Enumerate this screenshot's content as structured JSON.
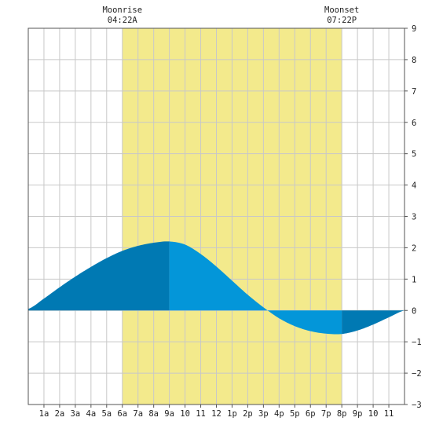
{
  "chart_data": {
    "type": "area",
    "title": "",
    "xlabel": "",
    "ylabel": "",
    "xlim": [
      0,
      24
    ],
    "ylim": [
      -3,
      9
    ],
    "x_ticks": [
      {
        "x": 1,
        "label": "1a"
      },
      {
        "x": 2,
        "label": "2a"
      },
      {
        "x": 3,
        "label": "3a"
      },
      {
        "x": 4,
        "label": "4a"
      },
      {
        "x": 5,
        "label": "5a"
      },
      {
        "x": 6,
        "label": "6a"
      },
      {
        "x": 7,
        "label": "7a"
      },
      {
        "x": 8,
        "label": "8a"
      },
      {
        "x": 9,
        "label": "9a"
      },
      {
        "x": 10,
        "label": "10"
      },
      {
        "x": 11,
        "label": "11"
      },
      {
        "x": 12,
        "label": "12"
      },
      {
        "x": 13,
        "label": "1p"
      },
      {
        "x": 14,
        "label": "2p"
      },
      {
        "x": 15,
        "label": "3p"
      },
      {
        "x": 16,
        "label": "4p"
      },
      {
        "x": 17,
        "label": "5p"
      },
      {
        "x": 18,
        "label": "6p"
      },
      {
        "x": 19,
        "label": "7p"
      },
      {
        "x": 20,
        "label": "8p"
      },
      {
        "x": 21,
        "label": "9p"
      },
      {
        "x": 22,
        "label": "10"
      },
      {
        "x": 23,
        "label": "11"
      }
    ],
    "y_ticks": [
      9,
      8,
      7,
      6,
      5,
      4,
      3,
      2,
      1,
      0,
      -1,
      -2,
      -3
    ],
    "grid": true,
    "annotations": {
      "moonrise": {
        "label": "Moonrise",
        "time": "04:22A",
        "x": 6
      },
      "moonset": {
        "label": "Moonset",
        "time": "07:22P",
        "x": 20
      }
    },
    "tide": {
      "x": [
        0,
        1,
        2,
        3,
        4,
        5,
        6,
        7,
        8,
        9,
        10,
        11,
        12,
        13,
        14,
        15,
        16,
        17,
        18,
        19,
        20,
        21,
        22,
        23,
        24
      ],
      "y": [
        0.05,
        0.38,
        0.74,
        1.08,
        1.39,
        1.67,
        1.9,
        2.06,
        2.16,
        2.2,
        2.1,
        1.8,
        1.4,
        0.95,
        0.5,
        0.1,
        -0.25,
        -0.5,
        -0.66,
        -0.74,
        -0.75,
        -0.64,
        -0.45,
        -0.22,
        0.0
      ]
    },
    "colors": {
      "moon_band": "#f3ea8c",
      "tide_dark": "#0079b3",
      "tide_light": "#0396d9",
      "grid": "#c8c8c8",
      "axis": "#555555"
    }
  }
}
